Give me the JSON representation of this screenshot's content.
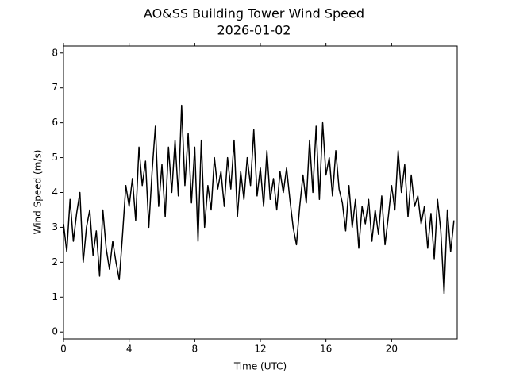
{
  "chart_data": {
    "type": "line",
    "title": "AO&SS Building Tower Wind Speed",
    "subtitle": "2026-01-02",
    "x_label": "Time (UTC)",
    "y_label": "Wind Speed (m/s)",
    "color": "#000000",
    "xlim": [
      0,
      24
    ],
    "xticks": [
      0,
      4,
      8,
      12,
      16,
      20
    ],
    "ylim": [
      -0.2,
      8.2
    ],
    "yticks": [
      0,
      1,
      2,
      3,
      4,
      5,
      6,
      7,
      8
    ],
    "grid": false,
    "x": [
      0,
      0.2,
      0.4,
      0.6,
      0.8,
      1,
      1.2,
      1.4,
      1.6,
      1.8,
      2,
      2.2,
      2.4,
      2.6,
      2.8,
      3,
      3.2,
      3.4,
      3.6,
      3.8,
      4,
      4.2,
      4.4,
      4.6,
      4.8,
      5,
      5.2,
      5.4,
      5.6,
      5.8,
      6,
      6.2,
      6.4,
      6.6,
      6.8,
      7,
      7.2,
      7.4,
      7.6,
      7.8,
      8,
      8.2,
      8.4,
      8.6,
      8.8,
      9,
      9.2,
      9.4,
      9.6,
      9.8,
      10,
      10.2,
      10.4,
      10.6,
      10.8,
      11,
      11.2,
      11.4,
      11.6,
      11.8,
      12,
      12.2,
      12.4,
      12.6,
      12.8,
      13,
      13.2,
      13.4,
      13.6,
      13.8,
      14,
      14.2,
      14.4,
      14.6,
      14.8,
      15,
      15.2,
      15.4,
      15.6,
      15.8,
      16,
      16.2,
      16.4,
      16.6,
      16.8,
      17,
      17.2,
      17.4,
      17.6,
      17.8,
      18,
      18.2,
      18.4,
      18.6,
      18.8,
      19,
      19.2,
      19.4,
      19.6,
      19.8,
      20,
      20.2,
      20.4,
      20.6,
      20.8,
      21,
      21.2,
      21.4,
      21.6,
      21.8,
      22,
      22.2,
      22.4,
      22.6,
      22.8,
      23,
      23.2,
      23.4,
      23.6,
      23.8
    ],
    "values": [
      3.1,
      2.3,
      3.8,
      2.6,
      3.4,
      4.0,
      2.0,
      3.0,
      3.5,
      2.2,
      2.9,
      1.6,
      3.5,
      2.4,
      1.8,
      2.6,
      2.0,
      1.5,
      2.8,
      4.2,
      3.6,
      4.4,
      3.2,
      5.3,
      4.2,
      4.9,
      3.0,
      4.6,
      5.9,
      3.6,
      4.8,
      3.3,
      5.3,
      4.0,
      5.5,
      3.9,
      6.5,
      4.2,
      5.7,
      3.7,
      5.3,
      2.6,
      5.5,
      3.0,
      4.2,
      3.5,
      5.0,
      4.1,
      4.6,
      3.6,
      5.0,
      4.1,
      5.5,
      3.3,
      4.6,
      3.8,
      5.0,
      4.2,
      5.8,
      3.9,
      4.7,
      3.6,
      5.2,
      3.8,
      4.4,
      3.5,
      4.6,
      4.0,
      4.7,
      3.8,
      3.0,
      2.5,
      3.6,
      4.5,
      3.7,
      5.5,
      4.0,
      5.9,
      3.8,
      6.0,
      4.5,
      5.0,
      3.9,
      5.2,
      4.1,
      3.7,
      2.9,
      4.2,
      3.0,
      3.8,
      2.4,
      3.6,
      3.1,
      3.8,
      2.6,
      3.5,
      2.8,
      3.9,
      2.5,
      3.3,
      4.2,
      3.5,
      5.2,
      4.0,
      4.8,
      3.3,
      4.5,
      3.6,
      3.9,
      3.1,
      3.6,
      2.4,
      3.4,
      2.1,
      3.8,
      2.9,
      1.1,
      3.5,
      2.3,
      3.2
    ]
  }
}
